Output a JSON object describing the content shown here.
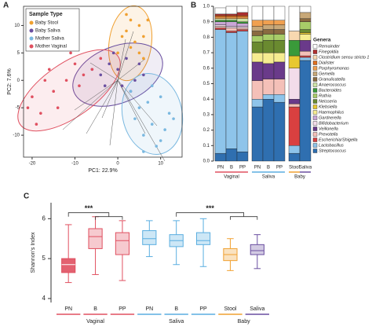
{
  "chart_data": [
    {
      "type": "scatter",
      "panel": "A",
      "xlabel": "PC1: 22.9%",
      "ylabel": "PC2: 7.6%",
      "legend_title": "Sample Type",
      "xlim": [
        -22,
        15
      ],
      "ylim": [
        -14,
        13.5
      ],
      "xticks": [
        -20,
        -10,
        0,
        10
      ],
      "yticks": [
        -10,
        -5,
        0,
        5,
        10
      ],
      "series": [
        {
          "name": "Baby Stool",
          "color": "#f0a030",
          "x": [
            3,
            5,
            2,
            6,
            4,
            1,
            7,
            3,
            5,
            2,
            6,
            0
          ],
          "values": [
            11,
            10,
            9,
            8,
            7,
            8,
            11,
            6,
            5,
            12,
            4,
            5
          ]
        },
        {
          "name": "Baby Saliva",
          "color": "#6a4fa0",
          "x": [
            -2,
            0,
            2,
            -4,
            4,
            -6,
            1,
            5,
            -1,
            3,
            -3,
            6
          ],
          "values": [
            3,
            2,
            4,
            1,
            0,
            2,
            -1,
            3,
            5,
            -2,
            -1,
            1
          ]
        },
        {
          "name": "Mother Saliva",
          "color": "#7ab8e0",
          "x": [
            5,
            8,
            10,
            6,
            12,
            3,
            9,
            11,
            7,
            13,
            4,
            8,
            10,
            6
          ],
          "values": [
            -5,
            -8,
            -3,
            -10,
            -6,
            -2,
            -12,
            -9,
            -4,
            -7,
            -7,
            -1,
            -11,
            -13
          ]
        },
        {
          "name": "Mother Vaginal",
          "color": "#e05060",
          "x": [
            -18,
            -20,
            -15,
            -12,
            -16,
            -10,
            -19,
            -8,
            -14,
            -11,
            -6,
            -17,
            -13,
            -9,
            -4,
            -21
          ],
          "values": [
            -6,
            -3,
            -2,
            0,
            2,
            3,
            -8,
            1,
            -5,
            5,
            2,
            0,
            7,
            -1,
            4,
            -5
          ]
        }
      ]
    },
    {
      "type": "stacked_bar",
      "panel": "B",
      "legend_title": "Genera",
      "categories": [
        "PN",
        "B",
        "PP",
        "PN",
        "B",
        "PP",
        "Stool",
        "Saliva"
      ],
      "category_groups": [
        "Vaginal",
        "Vaginal",
        "Vaginal",
        "Saliva",
        "Saliva",
        "Saliva",
        "Baby",
        "Baby"
      ],
      "group_labels": [
        "Vaginal",
        "Saliva",
        "Baby"
      ],
      "category_colors": [
        "#e05060",
        "#e05060",
        "#e05060",
        "#5aaee0",
        "#5aaee0",
        "#5aaee0",
        "#f0a030",
        "#6a4fa0"
      ],
      "ylim": [
        0,
        1
      ],
      "yticks": [
        {
          "value": 0,
          "label": "0.0"
        },
        0.1,
        0.2,
        0.3,
        0.4,
        0.5,
        0.6,
        0.7,
        0.8,
        0.9,
        {
          "value": 1,
          "label": "1.0"
        }
      ],
      "series": [
        {
          "name": "Streptococcus",
          "color": "#2f6fb0",
          "values": [
            0.05,
            0.08,
            0.06,
            0.35,
            0.4,
            0.38,
            0.05,
            0.65
          ]
        },
        {
          "name": "Lactobacillus",
          "color": "#8ec4ea",
          "values": [
            0.8,
            0.75,
            0.78,
            0.05,
            0.03,
            0.05,
            0.05,
            0.02
          ]
        },
        {
          "name": "Escherichia/Shigella",
          "color": "#d94040",
          "values": [
            0.01,
            0.01,
            0.01,
            0,
            0,
            0,
            0.25,
            0.01
          ]
        },
        {
          "name": "Prevotella",
          "color": "#f4c0b8",
          "values": [
            0.01,
            0.02,
            0.01,
            0.12,
            0.1,
            0.1,
            0.02,
            0.03
          ]
        },
        {
          "name": "Veillonella",
          "color": "#6a3a8a",
          "values": [
            0,
            0,
            0,
            0.12,
            0.1,
            0.11,
            0.03,
            0.07
          ]
        },
        {
          "name": "Bifidobacterium",
          "color": "#f2dcea",
          "values": [
            0.01,
            0.01,
            0.01,
            0,
            0,
            0,
            0.2,
            0
          ]
        },
        {
          "name": "Gardnerella",
          "color": "#c9a6d6",
          "values": [
            0.02,
            0.03,
            0.02,
            0,
            0,
            0,
            0,
            0
          ]
        },
        {
          "name": "Haemophilus",
          "color": "#f6ec90",
          "values": [
            0,
            0,
            0,
            0.06,
            0.07,
            0.06,
            0,
            0.04
          ]
        },
        {
          "name": "Klebsiella",
          "color": "#e8c830",
          "values": [
            0,
            0,
            0,
            0,
            0,
            0,
            0.08,
            0.01
          ]
        },
        {
          "name": "Neisseria",
          "color": "#6a8a30",
          "values": [
            0,
            0,
            0,
            0.07,
            0.08,
            0.08,
            0,
            0.02
          ]
        },
        {
          "name": "Rothia",
          "color": "#a8cc68",
          "values": [
            0,
            0,
            0,
            0.04,
            0.04,
            0.04,
            0,
            0.05
          ]
        },
        {
          "name": "Bacteroides",
          "color": "#3a9a3a",
          "values": [
            0.01,
            0.01,
            0.01,
            0,
            0,
            0,
            0.1,
            0
          ]
        },
        {
          "name": "Anaerococcus",
          "color": "#cfe4a8",
          "values": [
            0.01,
            0.01,
            0.02,
            0,
            0,
            0,
            0,
            0
          ]
        },
        {
          "name": "Granulicatella",
          "color": "#8a6a40",
          "values": [
            0,
            0,
            0,
            0.03,
            0.03,
            0.03,
            0,
            0.02
          ]
        },
        {
          "name": "Gemella",
          "color": "#c8a878",
          "values": [
            0,
            0,
            0,
            0.03,
            0.03,
            0.03,
            0,
            0.04
          ]
        },
        {
          "name": "Porphyromonas",
          "color": "#f0a050",
          "values": [
            0.01,
            0.01,
            0.01,
            0.04,
            0.03,
            0.03,
            0,
            0
          ]
        },
        {
          "name": "Dialister",
          "color": "#e07020",
          "values": [
            0.01,
            0.01,
            0.01,
            0,
            0,
            0,
            0,
            0
          ]
        },
        {
          "name": "Clostridium sensu stricto 1",
          "color": "#f8d8b0",
          "values": [
            0,
            0,
            0,
            0,
            0,
            0,
            0.06,
            0
          ]
        },
        {
          "name": "Finegoldia",
          "color": "#b03030",
          "values": [
            0.01,
            0.01,
            0.02,
            0,
            0,
            0,
            0,
            0
          ]
        },
        {
          "name": "Remainder",
          "color": "#ffffff",
          "values": [
            0.04,
            0.05,
            0.04,
            0.09,
            0.09,
            0.09,
            0.16,
            0.04
          ]
        }
      ]
    },
    {
      "type": "box",
      "panel": "C",
      "ylabel": "Shannon's Index",
      "categories": [
        "PN",
        "B",
        "PP",
        "PN",
        "B",
        "PP",
        "Stool",
        "Saliva"
      ],
      "category_groups": [
        "Vaginal",
        "Vaginal",
        "Vaginal",
        "Saliva",
        "Saliva",
        "Saliva",
        "Baby",
        "Baby"
      ],
      "group_labels": [
        "Vaginal",
        "Saliva",
        "Baby"
      ],
      "category_colors": [
        "#e05060",
        "#e05060",
        "#e05060",
        "#5aaee0",
        "#5aaee0",
        "#5aaee0",
        "#f0a030",
        "#6a4fa0"
      ],
      "ylim": [
        3.9,
        6.4
      ],
      "yticks": [
        4,
        5,
        6
      ],
      "annotations": [
        "***",
        "***"
      ],
      "boxes": [
        {
          "min": 4.4,
          "q1": 4.65,
          "median": 4.85,
          "q3": 5.0,
          "max": 5.85
        },
        {
          "min": 4.6,
          "q1": 5.25,
          "median": 5.55,
          "q3": 5.75,
          "max": 6.05
        },
        {
          "min": 4.45,
          "q1": 5.1,
          "median": 5.45,
          "q3": 5.65,
          "max": 5.95
        },
        {
          "min": 5.05,
          "q1": 5.35,
          "median": 5.5,
          "q3": 5.7,
          "max": 5.95
        },
        {
          "min": 4.85,
          "q1": 5.3,
          "median": 5.45,
          "q3": 5.6,
          "max": 5.95
        },
        {
          "min": 4.8,
          "q1": 5.35,
          "median": 5.45,
          "q3": 5.65,
          "max": 6.0
        },
        {
          "min": 4.7,
          "q1": 4.95,
          "median": 5.1,
          "q3": 5.25,
          "max": 5.5
        },
        {
          "min": 4.75,
          "q1": 5.1,
          "median": 5.2,
          "q3": 5.35,
          "max": 5.6
        }
      ]
    }
  ]
}
